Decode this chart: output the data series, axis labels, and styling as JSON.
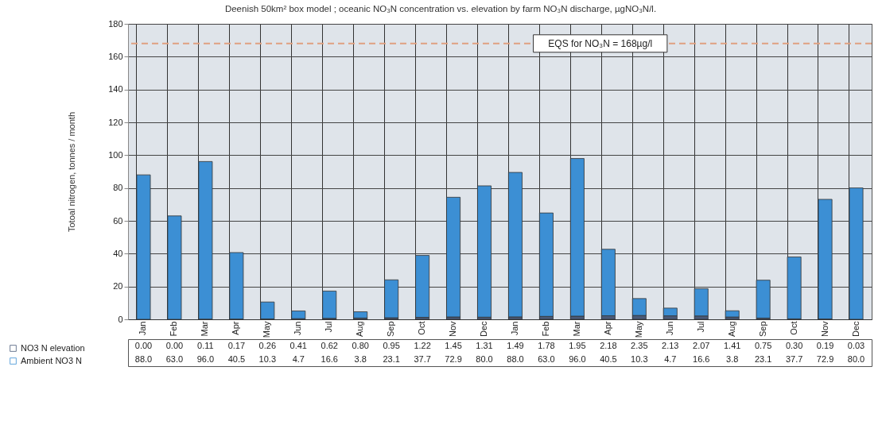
{
  "chart_data": {
    "type": "bar",
    "stacked": true,
    "title": "Deenish 50km² box model ;  oceanic NO₃N concentration vs. elevation by farm NO₃N discharge, µgNO₃N/l.",
    "ylabel": "Totoal nitrogen, tonnes / month",
    "categories": [
      "Jan",
      "Feb",
      "Mar",
      "Apr",
      "May",
      "Jun",
      "Jul",
      "Aug",
      "Sep",
      "Oct",
      "Nov",
      "Dec",
      "Jan",
      "Feb",
      "Mar",
      "Apr",
      "May",
      "Jun",
      "Jul",
      "Aug",
      "Sep",
      "Oct",
      "Nov",
      "Dec"
    ],
    "series": [
      {
        "name": "NO3 N elevation",
        "color": "#4a5a78",
        "values": [
          0.0,
          0.0,
          0.11,
          0.17,
          0.26,
          0.41,
          0.62,
          0.8,
          0.95,
          1.22,
          1.45,
          1.31,
          1.49,
          1.78,
          1.95,
          2.18,
          2.35,
          2.13,
          2.07,
          1.41,
          0.75,
          0.3,
          0.19,
          0.03
        ],
        "value_labels": [
          "0.00",
          "0.00",
          "0.11",
          "0.17",
          "0.26",
          "0.41",
          "0.62",
          "0.80",
          "0.95",
          "1.22",
          "1.45",
          "1.31",
          "1.49",
          "1.78",
          "1.95",
          "2.18",
          "2.35",
          "2.13",
          "2.07",
          "1.41",
          "0.75",
          "0.30",
          "0.19",
          "0.03"
        ]
      },
      {
        "name": "Ambient NO3 N",
        "color": "#3c8fd4",
        "values": [
          88.0,
          63.0,
          96.0,
          40.5,
          10.3,
          4.7,
          16.6,
          3.8,
          23.1,
          37.7,
          72.9,
          80.0,
          88.0,
          63.0,
          96.0,
          40.5,
          10.3,
          4.7,
          16.6,
          3.8,
          23.1,
          37.7,
          72.9,
          80.0
        ],
        "value_labels": [
          "88.0",
          "63.0",
          "96.0",
          "40.5",
          "10.3",
          "4.7",
          "16.6",
          "3.8",
          "23.1",
          "37.7",
          "72.9",
          "80.0",
          "88.0",
          "63.0",
          "96.0",
          "40.5",
          "10.3",
          "4.7",
          "16.6",
          "3.8",
          "23.1",
          "37.7",
          "72.9",
          "80.0"
        ]
      }
    ],
    "ylim": [
      0,
      180
    ],
    "yticks": [
      0,
      20,
      40,
      60,
      80,
      100,
      120,
      140,
      160,
      180
    ],
    "grid": true,
    "legend": "bottom left",
    "ref_lines": [
      {
        "axis": "y",
        "value": 168,
        "label": "EQS for NO₃N = 168µg/l",
        "color": "#e0a080",
        "line_style": "dashed"
      }
    ]
  }
}
